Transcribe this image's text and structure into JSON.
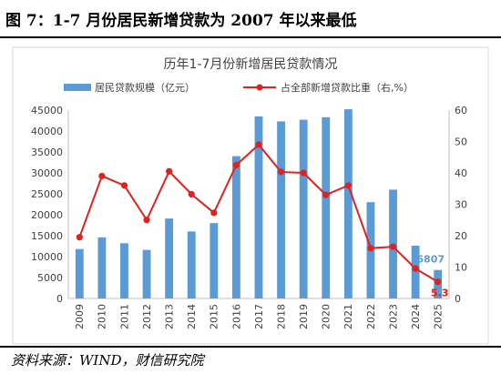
{
  "figure": {
    "title": "图 7：1-7 月份居民新增贷款为 2007 年以来最低",
    "source": "资料来源：WIND，财信研究院"
  },
  "chart_data": {
    "type": "bar",
    "title": "历年1-7月份新增居民贷款情况",
    "categories": [
      "2009",
      "2010",
      "2011",
      "2012",
      "2013",
      "2014",
      "2015",
      "2016",
      "2017",
      "2018",
      "2019",
      "2020",
      "2021",
      "2022",
      "2023",
      "2024",
      "2025"
    ],
    "series": [
      {
        "name": "居民贷款规模（亿元）",
        "type": "bar",
        "axis": "left",
        "color": "#5b9bd5",
        "values": [
          11800,
          14600,
          13200,
          11600,
          19100,
          16000,
          18000,
          34000,
          43500,
          42300,
          42700,
          43300,
          45200,
          23000,
          26000,
          12600,
          6807
        ]
      },
      {
        "name": "占全部新增贷款比重（右,%）",
        "type": "line",
        "axis": "right",
        "color": "#e0211d",
        "values": [
          19.5,
          39.0,
          36.0,
          25.0,
          40.5,
          33.2,
          27.3,
          42.5,
          49.0,
          40.3,
          40.0,
          33.0,
          36.0,
          16.0,
          16.5,
          9.5,
          5.3
        ]
      }
    ],
    "left_axis": {
      "min": 0,
      "max": 45000,
      "step": 5000
    },
    "right_axis": {
      "min": 0,
      "max": 60,
      "step": 10
    },
    "data_labels": [
      {
        "series": 0,
        "index": 16,
        "text": "6807",
        "color": "#5b9bd5"
      },
      {
        "series": 1,
        "index": 16,
        "text": "5.3",
        "color": "#e0211d"
      }
    ],
    "legend_position": "top",
    "grid": false
  }
}
